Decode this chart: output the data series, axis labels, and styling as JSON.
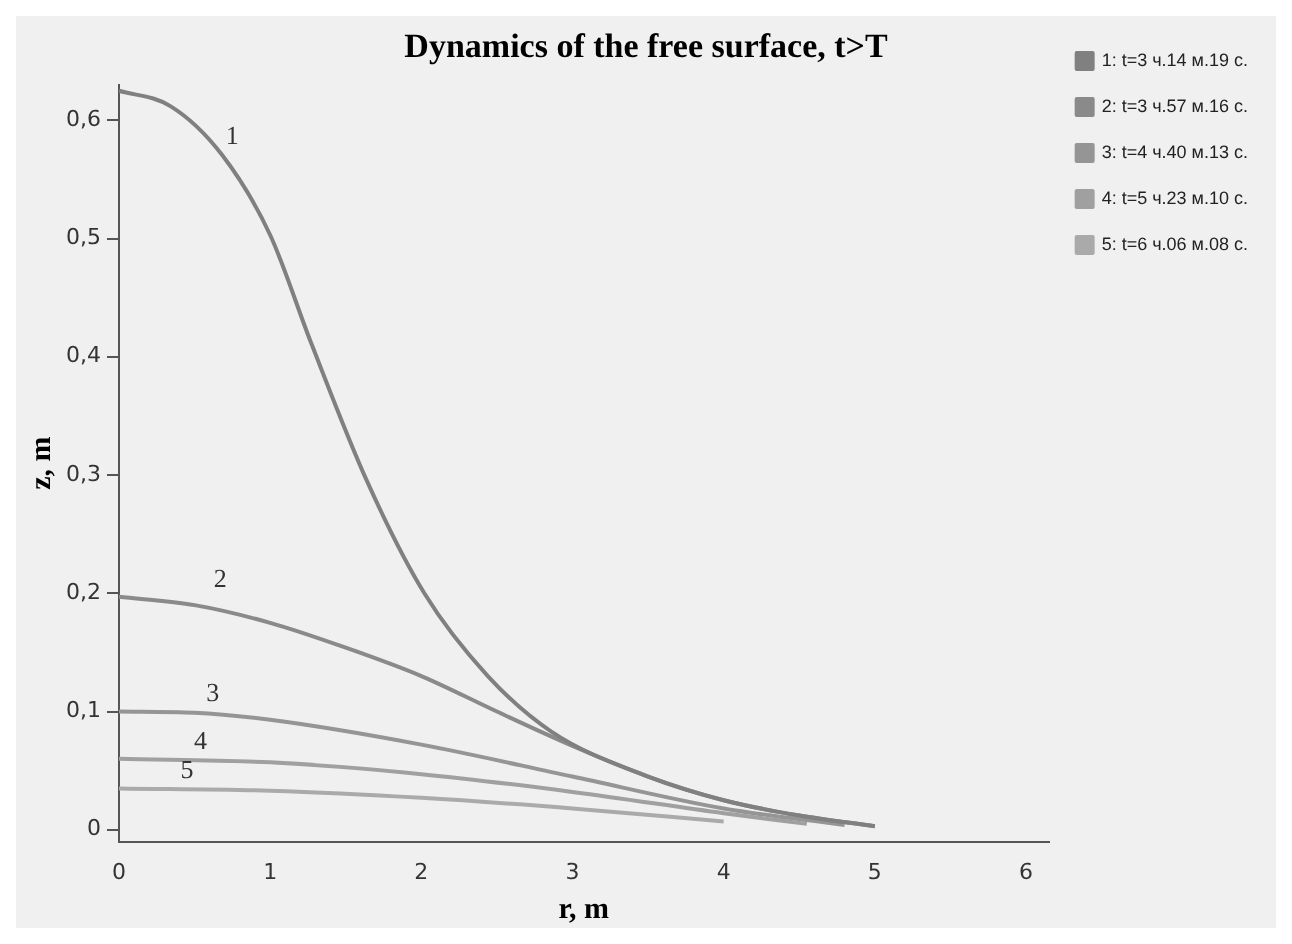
{
  "chart_data": {
    "type": "line",
    "title": "Dynamics of the free surface, t>T",
    "xlabel": "r, m",
    "ylabel": "z, m",
    "xlim": [
      0,
      6.15
    ],
    "ylim": [
      -0.01,
      0.63
    ],
    "xticks": [
      0,
      1,
      2,
      3,
      4,
      5,
      6
    ],
    "yticks": [
      {
        "value": 0,
        "label": "0"
      },
      {
        "value": 0.1,
        "label": "0,1"
      },
      {
        "value": 0.2,
        "label": "0,2"
      },
      {
        "value": 0.3,
        "label": "0,3"
      },
      {
        "value": 0.4,
        "label": "0,4"
      },
      {
        "value": 0.5,
        "label": "0,5"
      },
      {
        "value": 0.6,
        "label": "0,6"
      }
    ],
    "grid": false,
    "legend": "right",
    "marker": "none",
    "line_style": "solid",
    "series": [
      {
        "name": "1: t=3 ч.14 м.19 с.",
        "color": "#808080",
        "x": [
          0,
          0.34,
          0.68,
          1.0,
          1.27,
          1.64,
          2.02,
          2.44,
          2.86,
          3.5,
          4.0,
          4.5,
          5.0
        ],
        "values": [
          0.625,
          0.612,
          0.571,
          0.503,
          0.412,
          0.295,
          0.2,
          0.13,
          0.083,
          0.045,
          0.025,
          0.012,
          0.003
        ]
      },
      {
        "name": "2: t=3 ч.57 м.16 с.",
        "color": "#8a8a8a",
        "x": [
          0,
          0.5,
          1,
          1.5,
          2,
          2.5,
          3,
          3.5,
          4,
          4.5,
          5
        ],
        "values": [
          0.197,
          0.19,
          0.175,
          0.154,
          0.13,
          0.1,
          0.071,
          0.045,
          0.025,
          0.012,
          0.003
        ]
      },
      {
        "name": "3: t=4 ч.40 м.13 с.",
        "color": "#959595",
        "x": [
          0,
          0.5,
          1,
          2,
          3,
          4,
          4.8
        ],
        "values": [
          0.1,
          0.099,
          0.093,
          0.072,
          0.045,
          0.018,
          0.004
        ]
      },
      {
        "name": "4: t=5 ч.23 м.10 с.",
        "color": "#a0a0a0",
        "x": [
          0,
          1,
          2,
          3,
          4,
          4.55
        ],
        "values": [
          0.06,
          0.057,
          0.047,
          0.032,
          0.014,
          0.005
        ]
      },
      {
        "name": "5: t=6 ч.06 м.08 с.",
        "color": "#aaaaaa",
        "x": [
          0,
          1,
          2,
          3,
          4
        ],
        "values": [
          0.035,
          0.033,
          0.027,
          0.018,
          0.007
        ]
      }
    ],
    "annotations": [
      {
        "text": "1",
        "x": 0.68,
        "y": 0.571
      },
      {
        "text": "2",
        "x": 0.6,
        "y": 0.197
      },
      {
        "text": "3",
        "x": 0.55,
        "y": 0.1
      },
      {
        "text": "4",
        "x": 0.47,
        "y": 0.06
      },
      {
        "text": "5",
        "x": 0.38,
        "y": 0.035
      }
    ]
  }
}
